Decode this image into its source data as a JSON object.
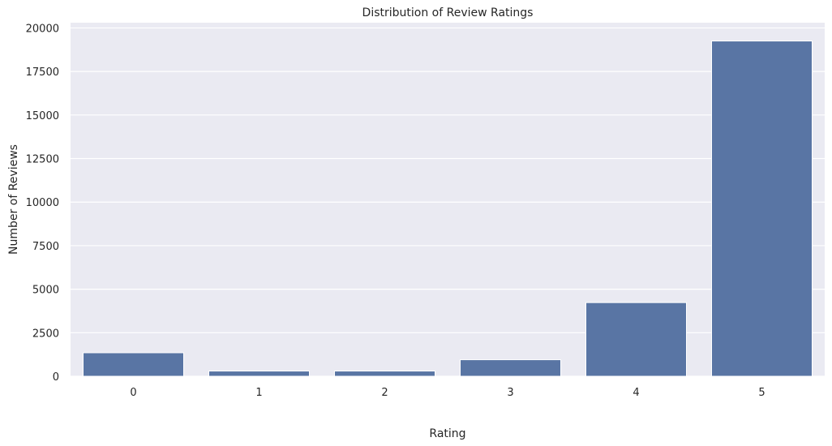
{
  "chart_data": {
    "type": "bar",
    "title": "Distribution of Review Ratings",
    "xlabel": "Rating",
    "ylabel": "Number of Reviews",
    "categories": [
      "0",
      "1",
      "2",
      "3",
      "4",
      "5"
    ],
    "values": [
      1350,
      300,
      300,
      950,
      4230,
      19250
    ],
    "ylim": [
      0,
      20300
    ],
    "yticks": [
      0,
      2500,
      5000,
      7500,
      10000,
      12500,
      15000,
      17500,
      20000
    ],
    "grid": true,
    "colors": {
      "bar": "#5975a4",
      "plot_background": "#eaeaf2",
      "grid": "#ffffff"
    }
  }
}
